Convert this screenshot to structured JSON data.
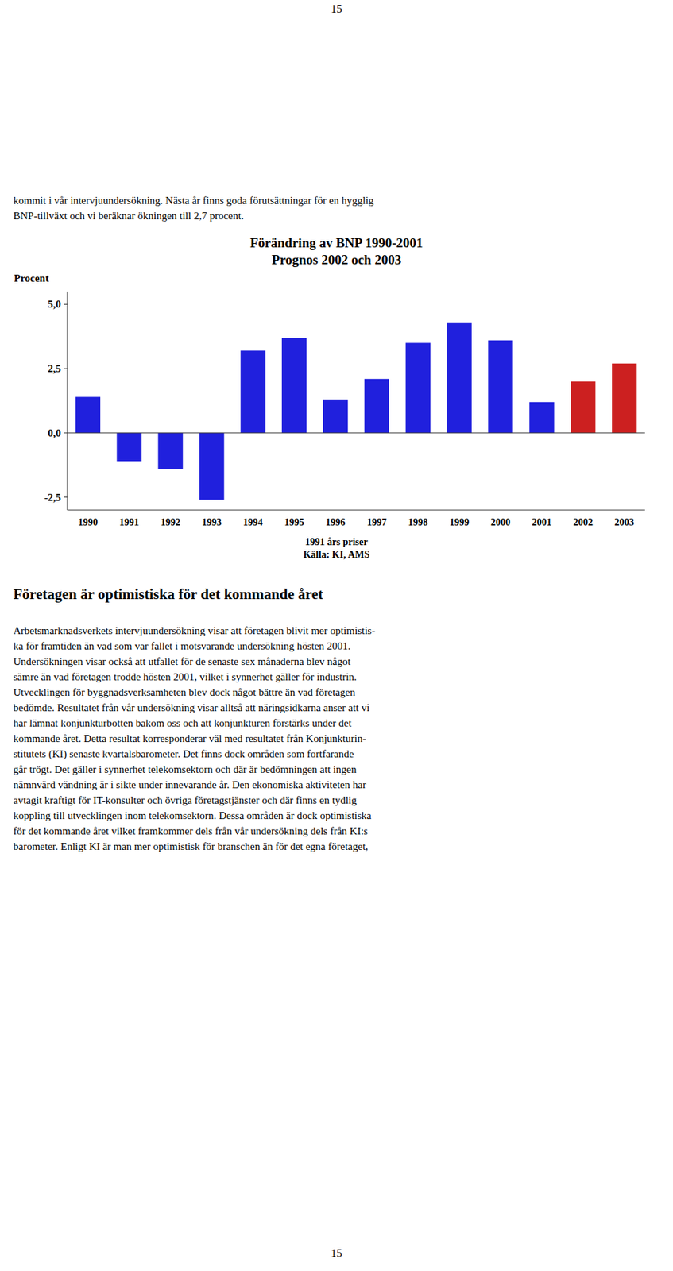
{
  "page_number": "15",
  "text_top_lines": [
    "kommit i vår intervjuundersökning. Nästa år finns goda förutsättningar för en hygglig",
    "BNP-tillväxt och vi beräknar ökningen till 2,7 procent."
  ],
  "section_title": "Företagen är optimistiska för det kommande året",
  "section_body_lines": [
    "Arbetsmarknadsverkets intervjuundersökning visar att företagen blivit mer optimistis-",
    "ka för framtiden än vad som var fallet i motsvarande undersökning hösten 2001.",
    "Undersökningen visar också att utfallet för de senaste sex månaderna blev något",
    "sämre än vad företagen trodde hösten 2001, vilket i synnerhet gäller för industrin.",
    "Utvecklingen för byggnadsverksamheten blev dock något bättre än vad företagen",
    "bedömde. Resultatet från vår undersökning visar alltså att näringsidkarna anser att vi",
    "har lämnat konjunkturbotten bakom oss och att konjunkturen förstärks under det",
    "kommande året. Detta resultat korresponderar väl med resultatet från Konjunkturin-",
    "stitutets (KI) senaste kvartalsbarometer. Det finns dock områden som fortfarande",
    "går trögt. Det gäller i synnerhet telekomsektorn och där är bedömningen att ingen",
    "nämnvärd vändning är i sikte under innevarande år. Den ekonomiska aktiviteten har",
    "avtagit kraftigt för IT-konsulter och övriga företagstjänster och där finns en tydlig",
    "koppling till utvecklingen inom telekomsektorn. Dessa områden är dock optimistiska",
    "för det kommande året vilket framkommer dels från vår undersökning dels från KI:s",
    "barometer. Enligt KI är man mer optimistisk för branschen än för det egna företaget,"
  ],
  "chart_data": {
    "type": "bar",
    "title": "Förändring av BNP 1990-2001",
    "subtitle": "Prognos 2002 och 2003",
    "ylabel": "Procent",
    "categories": [
      "1990",
      "1991",
      "1992",
      "1993",
      "1994",
      "1995",
      "1996",
      "1997",
      "1998",
      "1999",
      "2000",
      "2001",
      "2002",
      "2003"
    ],
    "values": [
      1.4,
      -1.1,
      -1.4,
      -2.6,
      3.2,
      3.7,
      1.3,
      2.1,
      3.5,
      4.3,
      3.6,
      1.2,
      2.0,
      2.7
    ],
    "colors": [
      "#2020dd",
      "#2020dd",
      "#2020dd",
      "#2020dd",
      "#2020dd",
      "#2020dd",
      "#2020dd",
      "#2020dd",
      "#2020dd",
      "#2020dd",
      "#2020dd",
      "#2020dd",
      "#cc2020",
      "#cc2020"
    ],
    "ylim": [
      -3.0,
      5.5
    ],
    "yticks": [
      {
        "value": -2.5,
        "label": "-2,5"
      },
      {
        "value": 0.0,
        "label": "0,0"
      },
      {
        "value": 2.5,
        "label": "2,5"
      },
      {
        "value": 5.0,
        "label": "5,0"
      }
    ],
    "grid": false,
    "annotations": [
      "1991 års priser",
      "Källa: KI, AMS"
    ]
  }
}
